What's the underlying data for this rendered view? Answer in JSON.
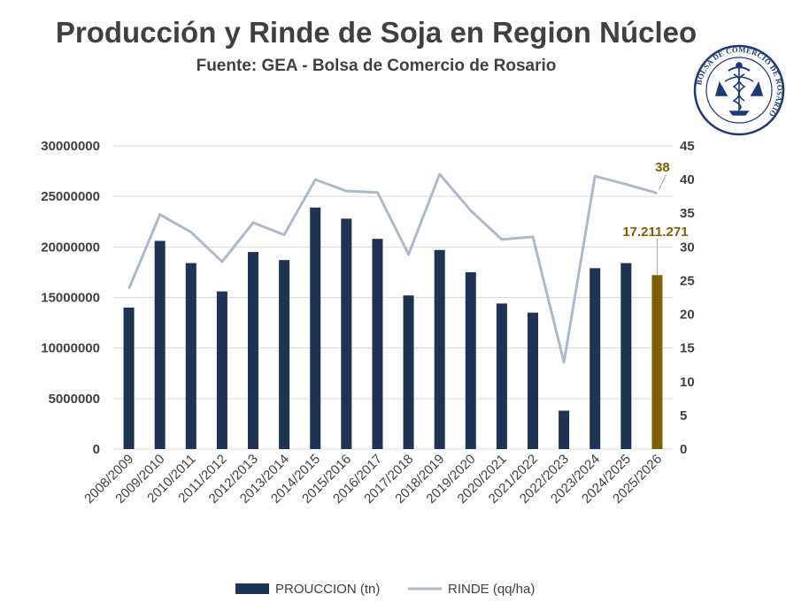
{
  "colors": {
    "bar": "#1f3354",
    "highlight": "#7f6000",
    "line": "#adb9ca",
    "grid": "#d9d9d9",
    "text": "#404040",
    "logo": "#1c3a7a"
  },
  "logo": {
    "icon": "bolsa-comercio-rosario-seal",
    "text": "BOLSA DE COMERCIO DE ROSARIO"
  },
  "chart_data": {
    "type": "bar+line",
    "title": "Producción y Rinde de Soja en Region Núcleo",
    "subtitle": "Fuente: GEA - Bolsa de Comercio de Rosario",
    "categories": [
      "2008/2009",
      "2009/2010",
      "2010/2011",
      "2011/2012",
      "2012/2013",
      "2013/2014",
      "2014/2015",
      "2015/2016",
      "2016/2017",
      "2017/2018",
      "2018/2019",
      "2019/2020",
      "2020/2021",
      "2021/2022",
      "2022/2023",
      "2023/2024",
      "2024/2025",
      "2025/2026"
    ],
    "series": [
      {
        "name": "PROUCCION (tn)",
        "type": "bar",
        "axis": "left",
        "values": [
          14000000,
          20600000,
          18400000,
          15600000,
          19500000,
          18700000,
          23900000,
          22800000,
          20800000,
          15200000,
          19700000,
          17500000,
          14400000,
          13500000,
          3800000,
          17900000,
          18400000,
          17211271
        ],
        "highlight_index": 17
      },
      {
        "name": "RINDE (qq/ha)",
        "type": "line",
        "axis": "right",
        "values": [
          23.8,
          34.8,
          32.2,
          27.8,
          33.6,
          31.8,
          40.0,
          38.3,
          38.1,
          28.9,
          40.8,
          35.4,
          31.1,
          31.5,
          12.9,
          40.5,
          39.3,
          38.0
        ]
      }
    ],
    "y_left": {
      "min": 0,
      "max": 30000000,
      "step": 5000000,
      "ticks": [
        "0",
        "5000000",
        "10000000",
        "15000000",
        "20000000",
        "25000000",
        "30000000"
      ]
    },
    "y_right": {
      "min": 0,
      "max": 45,
      "step": 5,
      "ticks": [
        "0",
        "5",
        "10",
        "15",
        "20",
        "25",
        "30",
        "35",
        "40",
        "45"
      ]
    },
    "annotations": [
      {
        "series": "PROUCCION (tn)",
        "index": 17,
        "text": "17.211.271"
      },
      {
        "series": "RINDE (qq/ha)",
        "index": 17,
        "text": "38"
      }
    ],
    "grid": true,
    "legend": {
      "position": "bottom",
      "items": [
        "PROUCCION (tn)",
        "RINDE (qq/ha)"
      ]
    }
  }
}
